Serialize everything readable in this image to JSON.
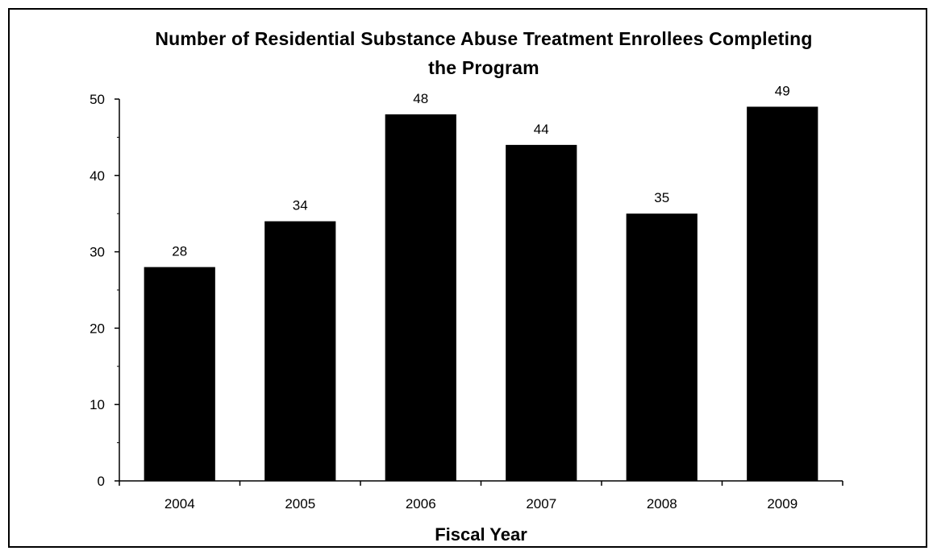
{
  "chart_data": {
    "type": "bar",
    "title_lines": [
      "Number of Residential Substance Abuse Treatment Enrollees Completing",
      "the Program"
    ],
    "xlabel": "Fiscal Year",
    "ylabel": "",
    "categories": [
      "2004",
      "2005",
      "2006",
      "2007",
      "2008",
      "2009"
    ],
    "values": [
      28,
      34,
      48,
      44,
      35,
      49
    ],
    "data_labels": [
      "28",
      "34",
      "48",
      "44",
      "35",
      "49"
    ],
    "ylim": [
      0,
      50
    ],
    "yticks": [
      0,
      10,
      20,
      30,
      40,
      50
    ],
    "ytick_labels": [
      "0",
      "10",
      "20",
      "30",
      "40",
      "50"
    ],
    "grid": false,
    "legend": "none",
    "bar_color": "#000000"
  }
}
